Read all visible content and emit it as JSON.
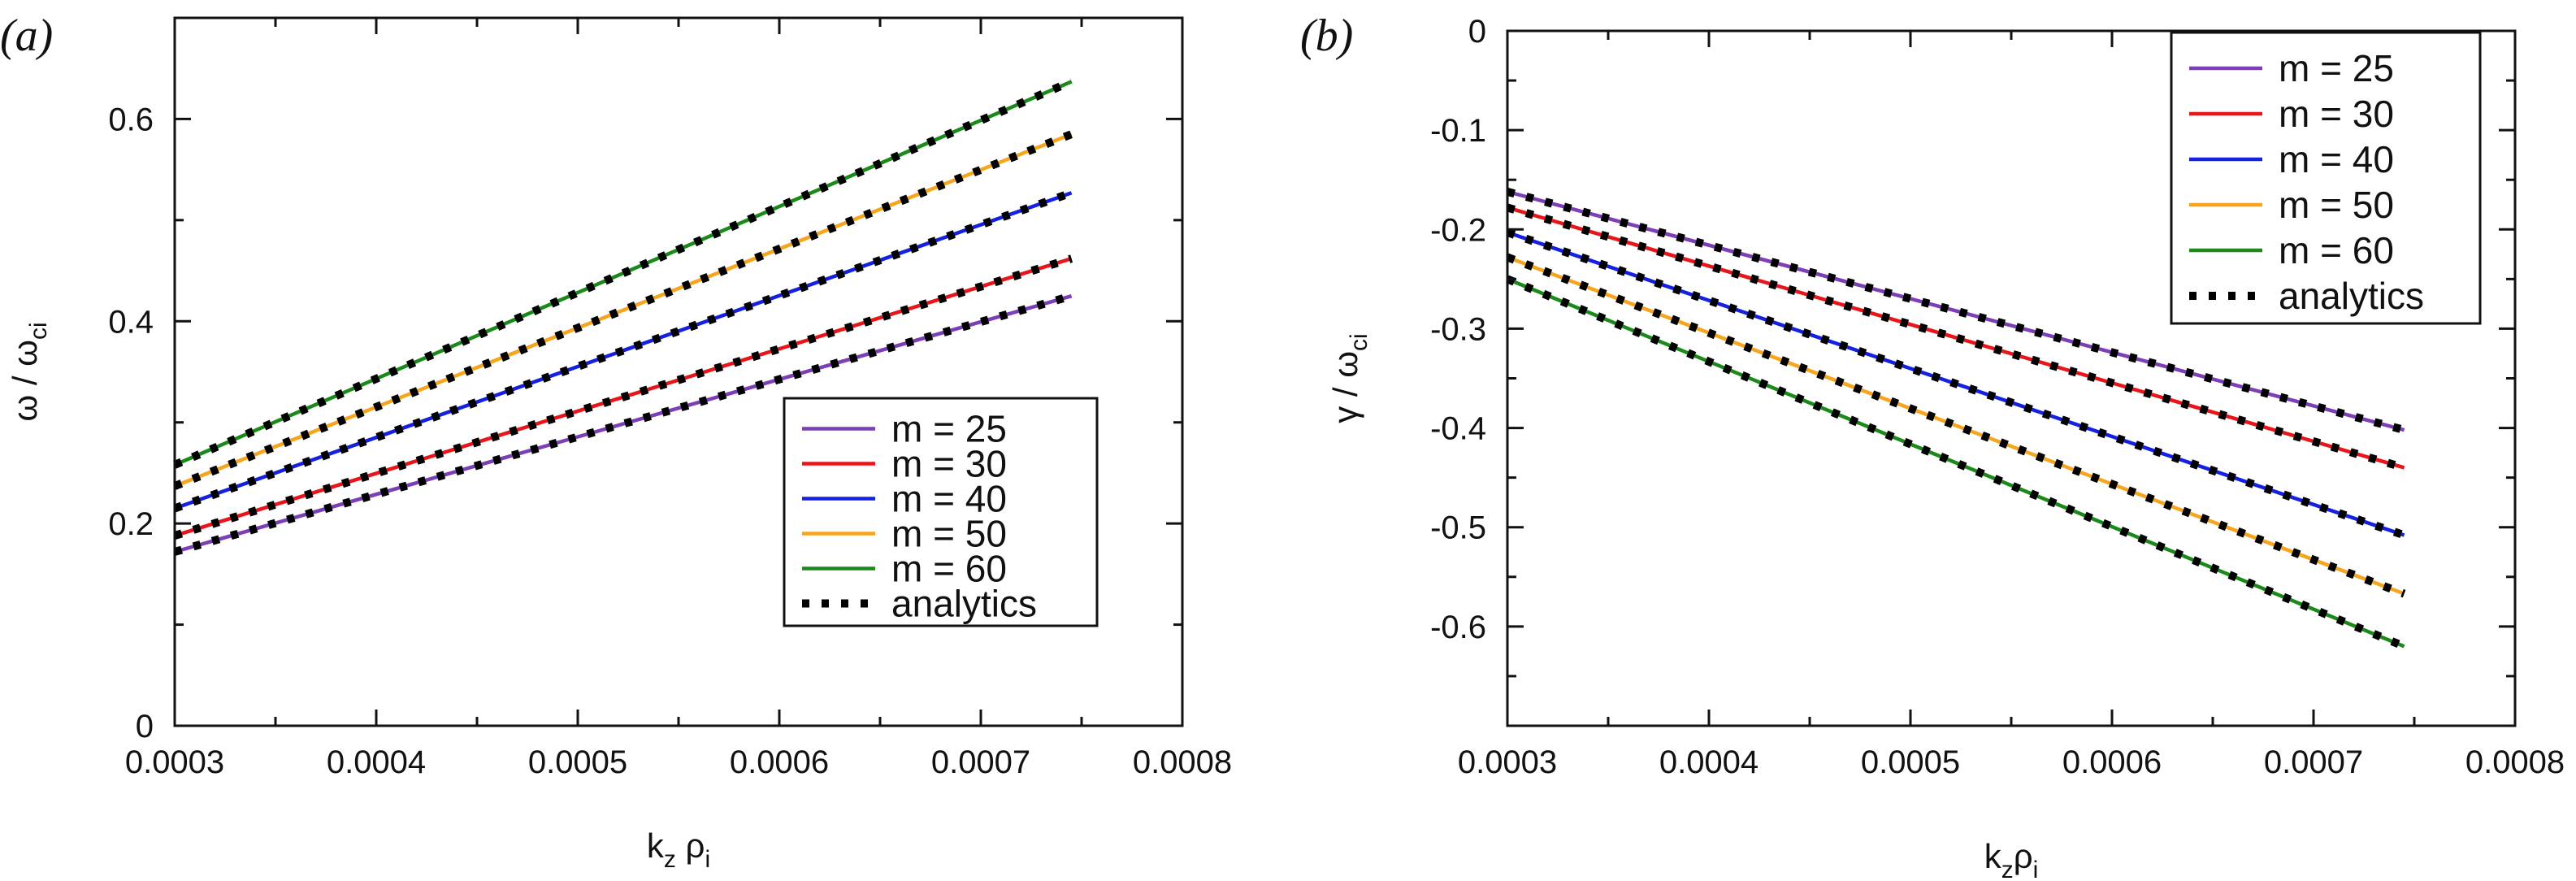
{
  "colors": {
    "m25": "#7d3fb5",
    "m30": "#e8161b",
    "m40": "#1520e0",
    "m50": "#f5a51e",
    "m60": "#1b8a1b",
    "analytics": "#000000",
    "axis": "#111111"
  },
  "chart_data": [
    {
      "type": "line",
      "panel_label": "(a)",
      "xlabel": {
        "main": "k",
        "sub": "z",
        "tail": " ρ",
        "tail_sub": "i"
      },
      "ylabel": {
        "main": "ω / ω",
        "sub": "ci"
      },
      "xlim": [
        0.0003,
        0.0008
      ],
      "ylim": [
        0,
        0.7
      ],
      "x_ticks": [
        0.0003,
        0.0004,
        0.0005,
        0.0006,
        0.0007,
        0.0008
      ],
      "x_tick_labels": [
        "0.0003",
        "0.0004",
        "0.0005",
        "0.0006",
        "0.0007",
        "0.0008"
      ],
      "y_ticks": [
        0,
        0.2,
        0.4,
        0.6
      ],
      "y_tick_labels": [
        "0",
        "0.2",
        "0.4",
        "0.6"
      ],
      "x_range": [
        0.0003,
        0.000745
      ],
      "legend_position": "bottom-right",
      "series": [
        {
          "name": "m = 25",
          "color_key": "m25",
          "y": [
            0.172,
            0.425
          ]
        },
        {
          "name": "m = 30",
          "color_key": "m30",
          "y": [
            0.188,
            0.462
          ]
        },
        {
          "name": "m  = 40",
          "color_key": "m40",
          "y": [
            0.215,
            0.527
          ]
        },
        {
          "name": "m = 50",
          "color_key": "m50",
          "y": [
            0.237,
            0.585
          ]
        },
        {
          "name": "m = 60",
          "color_key": "m60",
          "y": [
            0.258,
            0.637
          ]
        }
      ],
      "analytics_label": "analytics"
    },
    {
      "type": "line",
      "panel_label": "(b)",
      "xlabel": {
        "main": "k",
        "sub": "z",
        "tail": "ρ",
        "tail_sub": "i"
      },
      "ylabel": {
        "main": "γ / ω",
        "sub": "ci"
      },
      "xlim": [
        0.0003,
        0.0008
      ],
      "ylim": [
        -0.7,
        0
      ],
      "x_ticks": [
        0.0003,
        0.0004,
        0.0005,
        0.0006,
        0.0007,
        0.0008
      ],
      "x_tick_labels": [
        "0.0003",
        "0.0004",
        "0.0005",
        "0.0006",
        "0.0007",
        "0.0008"
      ],
      "y_ticks": [
        0,
        -0.1,
        -0.2,
        -0.3,
        -0.4,
        -0.5,
        -0.6
      ],
      "y_tick_labels": [
        "0",
        "-0.1",
        "-0.2",
        "-0.3",
        "-0.4",
        "-0.5",
        "-0.6"
      ],
      "x_range": [
        0.0003,
        0.000745
      ],
      "legend_position": "top-right",
      "series": [
        {
          "name": "m = 25",
          "color_key": "m25",
          "y": [
            -0.162,
            -0.402
          ]
        },
        {
          "name": "m = 30",
          "color_key": "m30",
          "y": [
            -0.178,
            -0.44
          ]
        },
        {
          "name": "m = 40",
          "color_key": "m40",
          "y": [
            -0.203,
            -0.508
          ]
        },
        {
          "name": "m = 50",
          "color_key": "m50",
          "y": [
            -0.228,
            -0.567
          ]
        },
        {
          "name": "m = 60",
          "color_key": "m60",
          "y": [
            -0.25,
            -0.62
          ]
        }
      ],
      "analytics_label": "analytics"
    }
  ]
}
